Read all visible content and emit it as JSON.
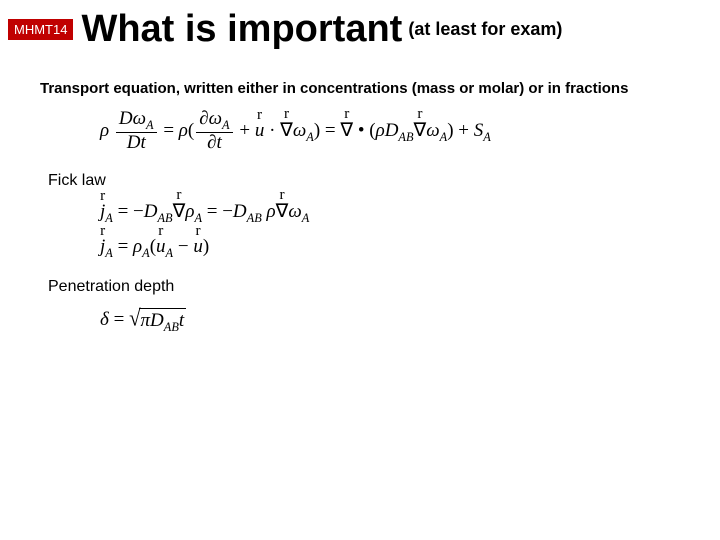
{
  "badge": "MHMT14",
  "title": "What is important",
  "subtitle": "(at least for exam)",
  "intro": "Transport equation, written either in concentrations (mass or molar) or in fractions",
  "label_fick": "Fick law",
  "label_pen": "Penetration depth",
  "colors": {
    "badge_bg": "#c00000",
    "badge_text": "#ffffff",
    "text": "#000000",
    "background": "#ffffff"
  },
  "equations": {
    "transport": "ρ (Dω_A / Dt) = ρ(∂ω_A/∂t + u · ∇ω_A) = ∇ · (ρ D_AB ∇ω_A) + S_A",
    "fick1": "j_A = −D_AB ∇ρ_A = −D_AB ρ ∇ω_A",
    "fick2": "j_A = ρ_A (u_A − u)",
    "penetration": "δ = √(π D_AB t)"
  }
}
